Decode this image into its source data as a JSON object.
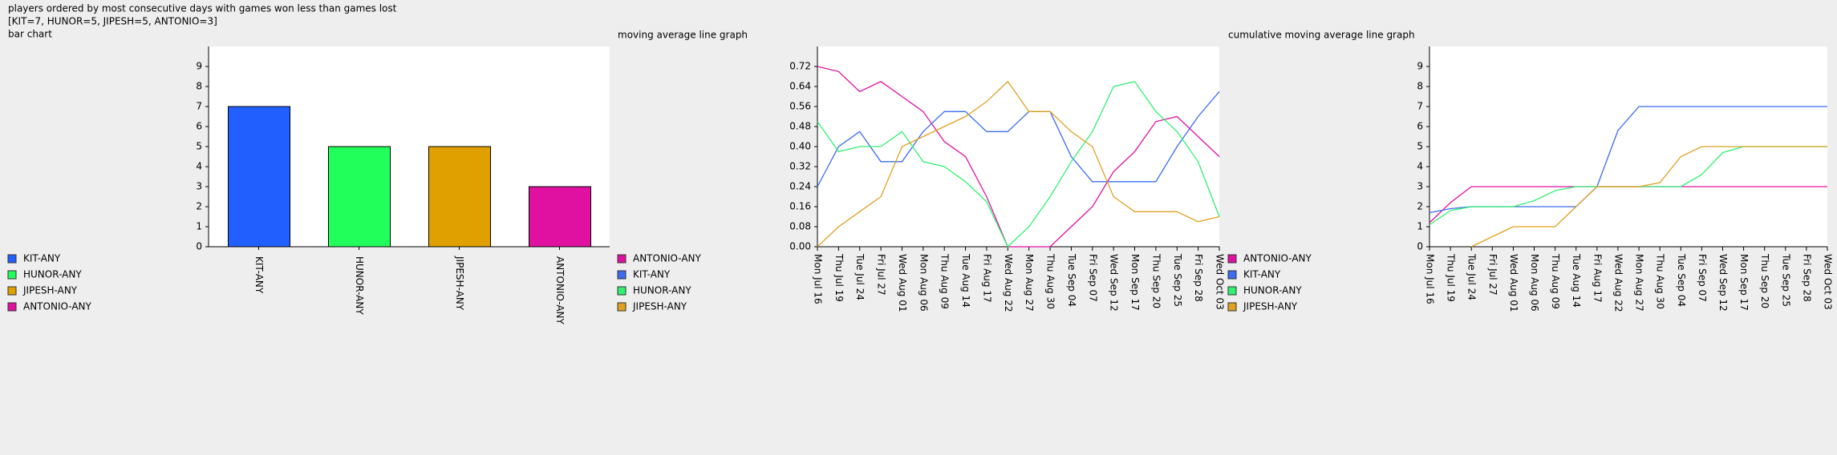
{
  "heading": "players ordered by most consecutive days with games won less than games lost",
  "summary": "[KIT=7, HUNOR=5, JIPESH=5, ANTONIO=3]",
  "chart_data": [
    {
      "type": "bar",
      "title": "bar chart",
      "categories": [
        "KIT-ANY",
        "HUNOR-ANY",
        "JIPESH-ANY",
        "ANTONIO-ANY"
      ],
      "values": [
        7,
        5,
        5,
        3
      ],
      "colors": [
        "#2160ff",
        "#21ff5a",
        "#e0a000",
        "#e010a0"
      ],
      "ylim": [
        0,
        10
      ],
      "yticks": [
        0,
        1,
        2,
        3,
        4,
        5,
        6,
        7,
        8,
        9
      ],
      "legend": "left"
    },
    {
      "type": "line",
      "title": "moving average line graph",
      "categories": [
        "Mon Jul 16",
        "Thu Jul 19",
        "Tue Jul 24",
        "Fri Jul 27",
        "Wed Aug 01",
        "Mon Aug 06",
        "Thu Aug 09",
        "Tue Aug 14",
        "Fri Aug 17",
        "Wed Aug 22",
        "Mon Aug 27",
        "Thu Aug 30",
        "Tue Sep 04",
        "Fri Sep 07",
        "Wed Sep 12",
        "Mon Sep 17",
        "Thu Sep 20",
        "Tue Sep 25",
        "Fri Sep 28",
        "Wed Oct 03"
      ],
      "series": [
        {
          "name": "ANTONIO-ANY",
          "color": "#e010a0",
          "values": [
            0.72,
            0.7,
            0.62,
            0.66,
            0.6,
            0.54,
            0.42,
            0.36,
            0.2,
            0.0,
            0.0,
            0.0,
            0.08,
            0.16,
            0.3,
            0.38,
            0.5,
            0.52,
            0.44,
            0.36
          ]
        },
        {
          "name": "KIT-ANY",
          "color": "#3c6cf0",
          "values": [
            0.24,
            0.4,
            0.46,
            0.34,
            0.34,
            0.46,
            0.54,
            0.54,
            0.46,
            0.46,
            0.54,
            0.54,
            0.36,
            0.26,
            0.26,
            0.26,
            0.26,
            0.4,
            0.52,
            0.62
          ]
        },
        {
          "name": "HUNOR-ANY",
          "color": "#30f070",
          "values": [
            0.5,
            0.38,
            0.4,
            0.4,
            0.46,
            0.34,
            0.32,
            0.26,
            0.18,
            0.0,
            0.08,
            0.2,
            0.34,
            0.46,
            0.64,
            0.66,
            0.54,
            0.46,
            0.34,
            0.12
          ]
        },
        {
          "name": "JIPESH-ANY",
          "color": "#e0a020",
          "values": [
            0.0,
            0.08,
            0.14,
            0.2,
            0.4,
            0.44,
            0.48,
            0.52,
            0.58,
            0.66,
            0.54,
            0.54,
            0.46,
            0.4,
            0.2,
            0.14,
            0.14,
            0.14,
            0.1,
            0.12
          ]
        }
      ],
      "ylim": [
        0,
        0.8
      ],
      "yticks": [
        {
          "value": 0,
          "label": "0.00"
        },
        {
          "value": 0.08,
          "label": "0.08"
        },
        {
          "value": 0.16,
          "label": "0.16"
        },
        {
          "value": 0.24,
          "label": "0.24"
        },
        {
          "value": 0.32,
          "label": "0.32"
        },
        {
          "value": 0.4,
          "label": "0.40"
        },
        {
          "value": 0.48,
          "label": "0.48"
        },
        {
          "value": 0.56,
          "label": "0.56"
        },
        {
          "value": 0.64,
          "label": "0.64"
        },
        {
          "value": 0.72,
          "label": "0.72"
        }
      ],
      "legend": "left"
    },
    {
      "type": "line",
      "title": "cumulative moving average line graph",
      "categories": [
        "Mon Jul 16",
        "Thu Jul 19",
        "Tue Jul 24",
        "Fri Jul 27",
        "Wed Aug 01",
        "Mon Aug 06",
        "Thu Aug 09",
        "Tue Aug 14",
        "Fri Aug 17",
        "Wed Aug 22",
        "Mon Aug 27",
        "Thu Aug 30",
        "Tue Sep 04",
        "Fri Sep 07",
        "Wed Sep 12",
        "Mon Sep 17",
        "Thu Sep 20",
        "Tue Sep 25",
        "Fri Sep 28",
        "Wed Oct 03"
      ],
      "series": [
        {
          "name": "ANTONIO-ANY",
          "color": "#e010a0",
          "values": [
            1.2,
            2.2,
            3.0,
            3.0,
            3.0,
            3.0,
            3.0,
            3.0,
            3.0,
            3.0,
            3.0,
            3.0,
            3.0,
            3.0,
            3.0,
            3.0,
            3.0,
            3.0,
            3.0,
            3.0
          ]
        },
        {
          "name": "KIT-ANY",
          "color": "#3c6cf0",
          "values": [
            1.7,
            1.9,
            2.0,
            2.0,
            2.0,
            2.0,
            2.0,
            2.0,
            3.0,
            5.8,
            7.0,
            7.0,
            7.0,
            7.0,
            7.0,
            7.0,
            7.0,
            7.0,
            7.0,
            7.0
          ]
        },
        {
          "name": "HUNOR-ANY",
          "color": "#30f070",
          "values": [
            1.1,
            1.8,
            2.0,
            2.0,
            2.0,
            2.3,
            2.8,
            3.0,
            3.0,
            3.0,
            3.0,
            3.0,
            3.0,
            3.6,
            4.7,
            5.0,
            5.0,
            5.0,
            5.0,
            5.0
          ]
        },
        {
          "name": "JIPESH-ANY",
          "color": "#e0a020",
          "values": [
            null,
            null,
            0,
            0.5,
            1.0,
            1.0,
            1.0,
            2.0,
            3.0,
            3.0,
            3.0,
            3.2,
            4.5,
            5.0,
            5.0,
            5.0,
            5.0,
            5.0,
            5.0,
            5.0
          ]
        }
      ],
      "ylim": [
        0,
        10
      ],
      "yticks": [
        0,
        1,
        2,
        3,
        4,
        5,
        6,
        7,
        8,
        9
      ],
      "legend": "left"
    }
  ]
}
